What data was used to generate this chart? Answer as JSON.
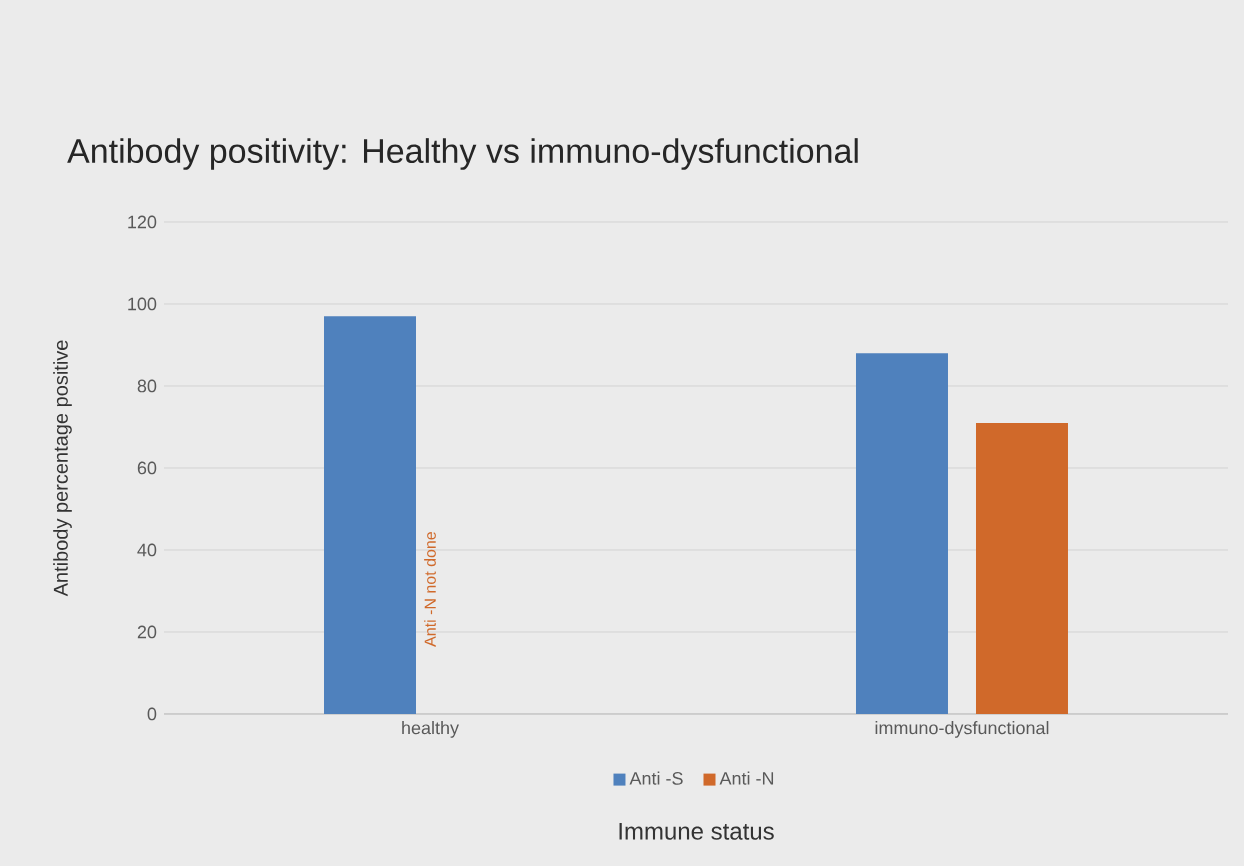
{
  "chart_data": {
    "type": "bar",
    "title": "Antibody positivity: Healthy vs immuno-dysfunctional",
    "xlabel": "Immune status",
    "ylabel": "Antibody percentage positive",
    "categories": [
      "healthy",
      "immuno-dysfunctional"
    ],
    "series": [
      {
        "name": "Anti -S",
        "color": "#4f81bd",
        "values": [
          97,
          88
        ]
      },
      {
        "name": "Anti -N",
        "color": "#d0692a",
        "values": [
          null,
          71
        ]
      }
    ],
    "annotations": [
      "Anti -N not done"
    ],
    "ylim": [
      0,
      120
    ],
    "yticks": [
      0,
      20,
      40,
      60,
      80,
      100,
      120
    ],
    "grid": "y",
    "legend": "bottom"
  }
}
